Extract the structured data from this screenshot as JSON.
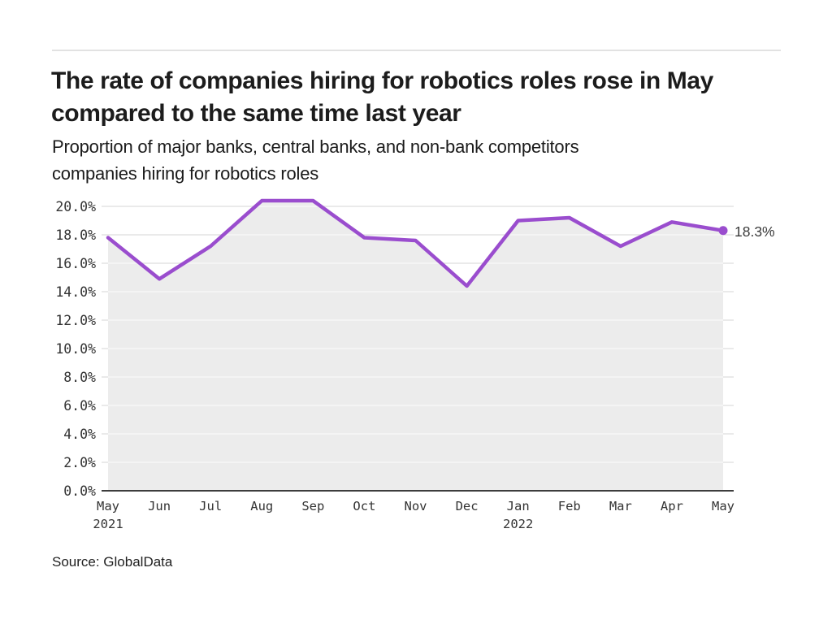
{
  "header": {
    "title_line1": "The rate of companies hiring for robotics roles rose in May",
    "title_line2": "compared to the same time last year",
    "subtitle_line1": "Proportion of major banks, central banks, and non-bank competitors",
    "subtitle_line2": "companies hiring for robotics roles"
  },
  "source": {
    "label": "Source: GlobalData"
  },
  "chart_data": {
    "type": "area",
    "title": "The rate of companies hiring for robotics roles rose in May compared to the same time last year",
    "subtitle": "Proportion of major banks, central banks, and non-bank competitors companies hiring for robotics roles",
    "categories": [
      "May",
      "Jun",
      "Jul",
      "Aug",
      "Sep",
      "Oct",
      "Nov",
      "Dec",
      "Jan",
      "Feb",
      "Mar",
      "Apr",
      "May"
    ],
    "year_labels": [
      {
        "index": 0,
        "label": "2021"
      },
      {
        "index": 8,
        "label": "2022"
      }
    ],
    "series": [
      {
        "name": "Proportion of companies hiring for robotics roles",
        "values": [
          17.8,
          14.9,
          17.2,
          20.4,
          20.4,
          17.8,
          17.6,
          14.4,
          19.0,
          19.2,
          17.2,
          18.9,
          18.3
        ]
      }
    ],
    "unit": "%",
    "xlabel": "",
    "ylabel": "",
    "ylim": [
      0,
      20
    ],
    "ytick_step": 2,
    "yticks": [
      {
        "value": 20,
        "label": "20.0%"
      },
      {
        "value": 18,
        "label": "18.0%"
      },
      {
        "value": 16,
        "label": "16.0%"
      },
      {
        "value": 14,
        "label": "14.0%"
      },
      {
        "value": 12,
        "label": "12.0%"
      },
      {
        "value": 10,
        "label": "10.0%"
      },
      {
        "value": 8,
        "label": "8.0%"
      },
      {
        "value": 6,
        "label": "6.0%"
      },
      {
        "value": 4,
        "label": "4.0%"
      },
      {
        "value": 2,
        "label": "2.0%"
      },
      {
        "value": 0,
        "label": "0.0%"
      }
    ],
    "grid": true,
    "legend_position": "none",
    "end_annotation": "18.3%",
    "colors": {
      "line": "#9a4dce",
      "marker": "#9a4dce",
      "area_fill": "#ececec",
      "gridline": "#e3e3e3",
      "axis_line": "#3d3d3d",
      "tick_text": "#333333",
      "annotation_text": "#3a3a3a"
    }
  }
}
